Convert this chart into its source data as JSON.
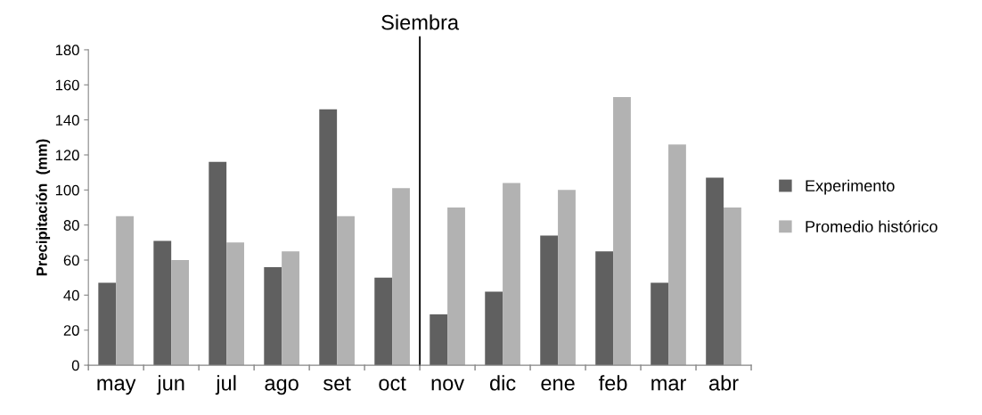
{
  "chart_data": {
    "type": "bar",
    "ylabel": "Precipitación  (mm)",
    "categories": [
      "may",
      "jun",
      "jul",
      "ago",
      "set",
      "oct",
      "nov",
      "dic",
      "ene",
      "feb",
      "mar",
      "abr"
    ],
    "series": [
      {
        "name": "Experimento",
        "color": "#606060",
        "values": [
          47,
          71,
          116,
          56,
          146,
          50,
          29,
          42,
          74,
          65,
          47,
          107
        ]
      },
      {
        "name": "Promedio histórico",
        "color": "#b2b2b2",
        "values": [
          85,
          60,
          70,
          65,
          85,
          101,
          90,
          104,
          100,
          153,
          126,
          90
        ]
      }
    ],
    "ylim": [
      0,
      180
    ],
    "yticks": [
      0,
      20,
      40,
      60,
      80,
      100,
      120,
      140,
      160,
      180
    ],
    "annotations": [
      "Siembra"
    ],
    "grid": false,
    "legend": "right"
  }
}
